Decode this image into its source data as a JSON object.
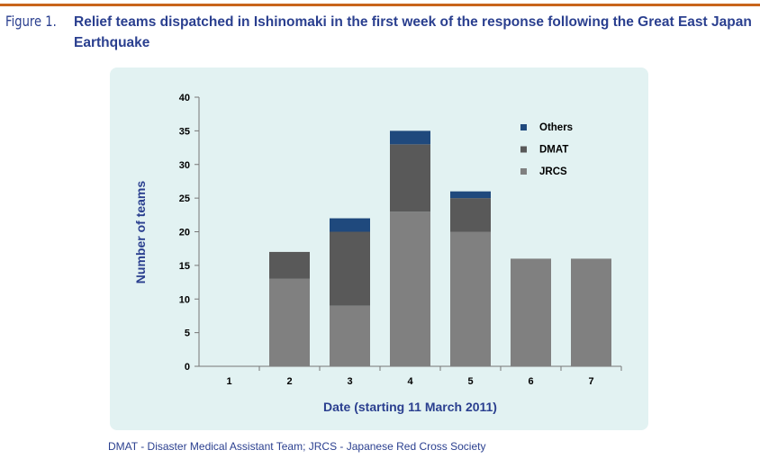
{
  "figure_label": "Figure 1.",
  "caption": "Relief teams dispatched in Ishinomaki in the first week of the response following the Great East Japan Earthquake",
  "footnote": "DMAT - Disaster Medical Assistant Team; JRCS - Japanese Red Cross Society",
  "chart_data": {
    "type": "bar",
    "stacked": true,
    "categories": [
      "1",
      "2",
      "3",
      "4",
      "5",
      "6",
      "7"
    ],
    "series": [
      {
        "name": "JRCS",
        "color": "#808080",
        "values": [
          0,
          13,
          9,
          23,
          20,
          16,
          16
        ]
      },
      {
        "name": "DMAT",
        "color": "#595959",
        "values": [
          0,
          4,
          11,
          10,
          5,
          0,
          0
        ]
      },
      {
        "name": "Others",
        "color": "#1f497d",
        "values": [
          0,
          0,
          2,
          2,
          1,
          0,
          0
        ]
      }
    ],
    "xlabel": "Date (starting 11 March 2011)",
    "ylabel": "Number of teams",
    "ylim": [
      0,
      40
    ],
    "yticks": [
      0,
      5,
      10,
      15,
      20,
      25,
      30,
      35,
      40
    ],
    "legend_position": "top-right",
    "grid": false
  }
}
